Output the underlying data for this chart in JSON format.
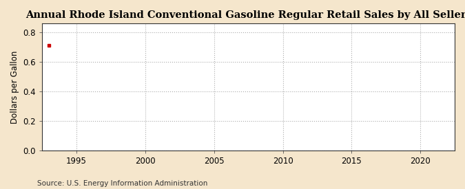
{
  "title": "Annual Rhode Island Conventional Gasoline Regular Retail Sales by All Sellers",
  "ylabel": "Dollars per Gallon",
  "source": "Source: U.S. Energy Information Administration",
  "fig_bg_color": "#f5e6cc",
  "plot_bg_color": "#ffffff",
  "data_x": [
    1993.0
  ],
  "data_y": [
    0.713
  ],
  "data_color": "#cc0000",
  "xlim": [
    1992.5,
    2022.5
  ],
  "ylim": [
    0.0,
    0.86
  ],
  "yticks": [
    0.0,
    0.2,
    0.4,
    0.6,
    0.8
  ],
  "xticks": [
    1995,
    2000,
    2005,
    2010,
    2015,
    2020
  ],
  "grid_color": "#888888",
  "title_fontsize": 10.5,
  "label_fontsize": 8.5,
  "tick_fontsize": 8.5,
  "source_fontsize": 7.5
}
